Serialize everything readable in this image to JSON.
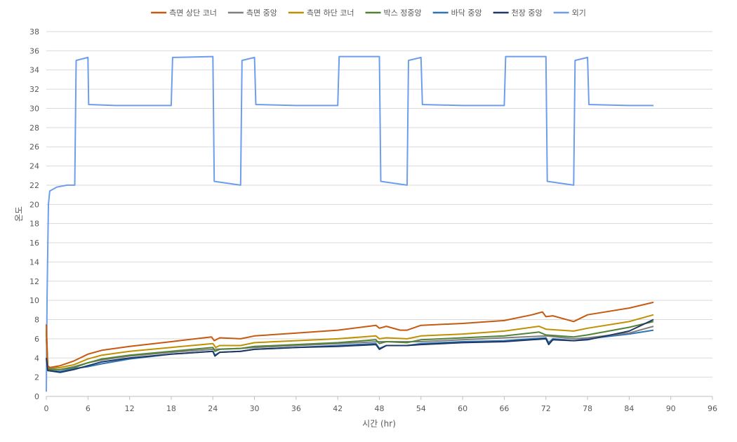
{
  "chart_data": {
    "type": "line",
    "title": "",
    "xlabel": "시간 (hr)",
    "ylabel": "온도",
    "xlim": [
      0,
      96
    ],
    "ylim": [
      0,
      38
    ],
    "x_ticks": [
      "0",
      "6",
      "12",
      "18",
      "24",
      "30",
      "36",
      "42",
      "48",
      "54",
      "60",
      "66",
      "72",
      "78",
      "84",
      "90",
      "96"
    ],
    "y_ticks": [
      "0",
      "2",
      "4",
      "6",
      "8",
      "10",
      "12",
      "14",
      "16",
      "18",
      "20",
      "22",
      "24",
      "26",
      "28",
      "30",
      "32",
      "34",
      "36",
      "38"
    ],
    "grid": "horizontal",
    "legend_position": "top",
    "series": [
      {
        "name": "측면 상단 코너",
        "color": "#C55A11",
        "points": [
          [
            0,
            7.5
          ],
          [
            0.2,
            3.2
          ],
          [
            0.5,
            3.0
          ],
          [
            2,
            3.2
          ],
          [
            4,
            3.7
          ],
          [
            6,
            4.4
          ],
          [
            8,
            4.8
          ],
          [
            12,
            5.2
          ],
          [
            18,
            5.7
          ],
          [
            23.8,
            6.2
          ],
          [
            24.2,
            5.8
          ],
          [
            25,
            6.1
          ],
          [
            28,
            6.0
          ],
          [
            30,
            6.3
          ],
          [
            36,
            6.6
          ],
          [
            42,
            6.9
          ],
          [
            47.5,
            7.4
          ],
          [
            48,
            7.1
          ],
          [
            49,
            7.3
          ],
          [
            51,
            6.9
          ],
          [
            52,
            6.9
          ],
          [
            54,
            7.4
          ],
          [
            60,
            7.6
          ],
          [
            66,
            7.9
          ],
          [
            70,
            8.5
          ],
          [
            71.5,
            8.8
          ],
          [
            72,
            8.3
          ],
          [
            73,
            8.4
          ],
          [
            76,
            7.8
          ],
          [
            78,
            8.5
          ],
          [
            84,
            9.2
          ],
          [
            87.5,
            9.8
          ]
        ]
      },
      {
        "name": "측면 중앙",
        "color": "#7F7F7F",
        "points": [
          [
            0,
            6.5
          ],
          [
            0.2,
            2.9
          ],
          [
            2,
            2.8
          ],
          [
            4,
            3.1
          ],
          [
            6,
            3.5
          ],
          [
            8,
            3.8
          ],
          [
            12,
            4.2
          ],
          [
            18,
            4.6
          ],
          [
            24,
            4.9
          ],
          [
            28,
            5.0
          ],
          [
            30,
            5.1
          ],
          [
            36,
            5.3
          ],
          [
            42,
            5.5
          ],
          [
            48,
            5.7
          ],
          [
            54,
            5.7
          ],
          [
            60,
            5.9
          ],
          [
            66,
            6.1
          ],
          [
            72,
            6.3
          ],
          [
            76,
            6.0
          ],
          [
            78,
            6.1
          ],
          [
            84,
            6.6
          ],
          [
            87.5,
            7.3
          ]
        ]
      },
      {
        "name": "측면 하단 코너",
        "color": "#BF9000",
        "points": [
          [
            0,
            7.0
          ],
          [
            0.2,
            3.0
          ],
          [
            2,
            3.0
          ],
          [
            4,
            3.3
          ],
          [
            6,
            3.9
          ],
          [
            8,
            4.3
          ],
          [
            12,
            4.7
          ],
          [
            18,
            5.1
          ],
          [
            24,
            5.5
          ],
          [
            24.4,
            5.1
          ],
          [
            25,
            5.3
          ],
          [
            28,
            5.3
          ],
          [
            30,
            5.6
          ],
          [
            36,
            5.8
          ],
          [
            42,
            6.0
          ],
          [
            47.5,
            6.3
          ],
          [
            48,
            6.0
          ],
          [
            49,
            6.1
          ],
          [
            52,
            6.0
          ],
          [
            54,
            6.3
          ],
          [
            60,
            6.5
          ],
          [
            66,
            6.8
          ],
          [
            71,
            7.3
          ],
          [
            72,
            7.0
          ],
          [
            76,
            6.8
          ],
          [
            78,
            7.1
          ],
          [
            84,
            7.8
          ],
          [
            87.5,
            8.5
          ]
        ]
      },
      {
        "name": "박스 정중앙",
        "color": "#548235",
        "points": [
          [
            0,
            6.8
          ],
          [
            0.2,
            2.8
          ],
          [
            2,
            2.8
          ],
          [
            4,
            3.0
          ],
          [
            6,
            3.5
          ],
          [
            8,
            3.9
          ],
          [
            12,
            4.3
          ],
          [
            18,
            4.7
          ],
          [
            24,
            5.1
          ],
          [
            24.3,
            4.7
          ],
          [
            25,
            4.9
          ],
          [
            28,
            5.0
          ],
          [
            30,
            5.2
          ],
          [
            36,
            5.4
          ],
          [
            42,
            5.6
          ],
          [
            47.5,
            5.9
          ],
          [
            48,
            5.5
          ],
          [
            49,
            5.7
          ],
          [
            52,
            5.6
          ],
          [
            54,
            5.9
          ],
          [
            60,
            6.1
          ],
          [
            66,
            6.3
          ],
          [
            71,
            6.7
          ],
          [
            72,
            6.4
          ],
          [
            76,
            6.2
          ],
          [
            78,
            6.4
          ],
          [
            84,
            7.2
          ],
          [
            87.5,
            7.8
          ]
        ]
      },
      {
        "name": "바닥 중앙",
        "color": "#2E75B6",
        "points": [
          [
            0,
            6.0
          ],
          [
            0.2,
            2.7
          ],
          [
            2,
            2.6
          ],
          [
            4,
            2.9
          ],
          [
            6,
            3.1
          ],
          [
            8,
            3.4
          ],
          [
            12,
            3.9
          ],
          [
            18,
            4.4
          ],
          [
            24,
            4.7
          ],
          [
            24.3,
            4.3
          ],
          [
            25,
            4.6
          ],
          [
            28,
            4.7
          ],
          [
            30,
            4.9
          ],
          [
            36,
            5.1
          ],
          [
            42,
            5.3
          ],
          [
            47.5,
            5.5
          ],
          [
            48,
            5.0
          ],
          [
            49,
            5.3
          ],
          [
            52,
            5.3
          ],
          [
            54,
            5.5
          ],
          [
            60,
            5.7
          ],
          [
            66,
            5.8
          ],
          [
            72,
            6.1
          ],
          [
            72.4,
            5.6
          ],
          [
            73,
            6.0
          ],
          [
            76,
            5.8
          ],
          [
            78,
            6.0
          ],
          [
            84,
            6.5
          ],
          [
            87.5,
            6.9
          ]
        ]
      },
      {
        "name": "천장 중앙",
        "color": "#1F3864",
        "points": [
          [
            0,
            4.0
          ],
          [
            0.2,
            2.7
          ],
          [
            2,
            2.5
          ],
          [
            4,
            2.8
          ],
          [
            6,
            3.2
          ],
          [
            8,
            3.6
          ],
          [
            12,
            4.0
          ],
          [
            18,
            4.4
          ],
          [
            24,
            4.7
          ],
          [
            24.3,
            4.2
          ],
          [
            25,
            4.6
          ],
          [
            28,
            4.7
          ],
          [
            30,
            4.9
          ],
          [
            36,
            5.1
          ],
          [
            42,
            5.2
          ],
          [
            47.5,
            5.4
          ],
          [
            48,
            4.9
          ],
          [
            49,
            5.3
          ],
          [
            52,
            5.3
          ],
          [
            54,
            5.4
          ],
          [
            60,
            5.6
          ],
          [
            66,
            5.7
          ],
          [
            72,
            6.0
          ],
          [
            72.4,
            5.4
          ],
          [
            73,
            5.9
          ],
          [
            76,
            5.8
          ],
          [
            78,
            5.9
          ],
          [
            84,
            6.8
          ],
          [
            87.5,
            8.0
          ]
        ]
      },
      {
        "name": "외기",
        "color": "#6D9EEB",
        "points": [
          [
            0,
            0.5
          ],
          [
            0.1,
            10
          ],
          [
            0.3,
            20
          ],
          [
            0.5,
            21.4
          ],
          [
            1.5,
            21.8
          ],
          [
            3,
            22.0
          ],
          [
            4.1,
            22.0
          ],
          [
            4.3,
            35
          ],
          [
            6,
            35.3
          ],
          [
            6.1,
            30.4
          ],
          [
            10,
            30.3
          ],
          [
            14,
            30.3
          ],
          [
            18,
            30.3
          ],
          [
            18.2,
            35.3
          ],
          [
            24,
            35.4
          ],
          [
            24.2,
            22.4
          ],
          [
            28,
            22.0
          ],
          [
            28.2,
            35
          ],
          [
            30,
            35.3
          ],
          [
            30.2,
            30.4
          ],
          [
            36,
            30.3
          ],
          [
            42,
            30.3
          ],
          [
            42.2,
            35.4
          ],
          [
            48,
            35.4
          ],
          [
            48.2,
            22.4
          ],
          [
            52,
            22.0
          ],
          [
            52.2,
            35
          ],
          [
            54,
            35.3
          ],
          [
            54.2,
            30.4
          ],
          [
            60,
            30.3
          ],
          [
            66,
            30.3
          ],
          [
            66.2,
            35.4
          ],
          [
            72,
            35.4
          ],
          [
            72.2,
            22.4
          ],
          [
            76,
            22.0
          ],
          [
            76.2,
            35
          ],
          [
            78,
            35.3
          ],
          [
            78.2,
            30.4
          ],
          [
            84,
            30.3
          ],
          [
            87.5,
            30.3
          ]
        ]
      }
    ]
  }
}
